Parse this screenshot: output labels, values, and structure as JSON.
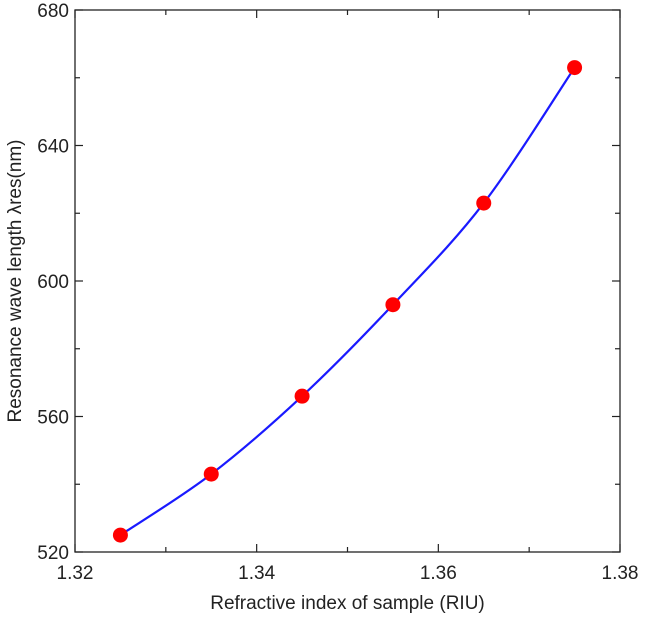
{
  "chart_data": {
    "type": "line",
    "title": "",
    "xlabel": "Refractive index of sample (RIU)",
    "ylabel": "Resonance wave length λres(nm)",
    "xlim": [
      1.32,
      1.38
    ],
    "ylim": [
      520,
      680
    ],
    "x_ticks": [
      1.32,
      1.34,
      1.36,
      1.38
    ],
    "x_tick_labels": [
      "1.32",
      "1.34",
      "1.36",
      "1.38"
    ],
    "y_ticks": [
      520,
      560,
      600,
      640,
      680
    ],
    "y_tick_labels": [
      "520",
      "560",
      "600",
      "640",
      "680"
    ],
    "grid": false,
    "legend": "none",
    "series": [
      {
        "x": [
          1.325,
          1.335,
          1.345,
          1.355,
          1.365,
          1.375
        ],
        "y": [
          525,
          543,
          566,
          593,
          623,
          663
        ],
        "line_color": "#1a1aff",
        "marker_color": "#ff0000",
        "marker": "circle",
        "smooth": true
      }
    ]
  }
}
